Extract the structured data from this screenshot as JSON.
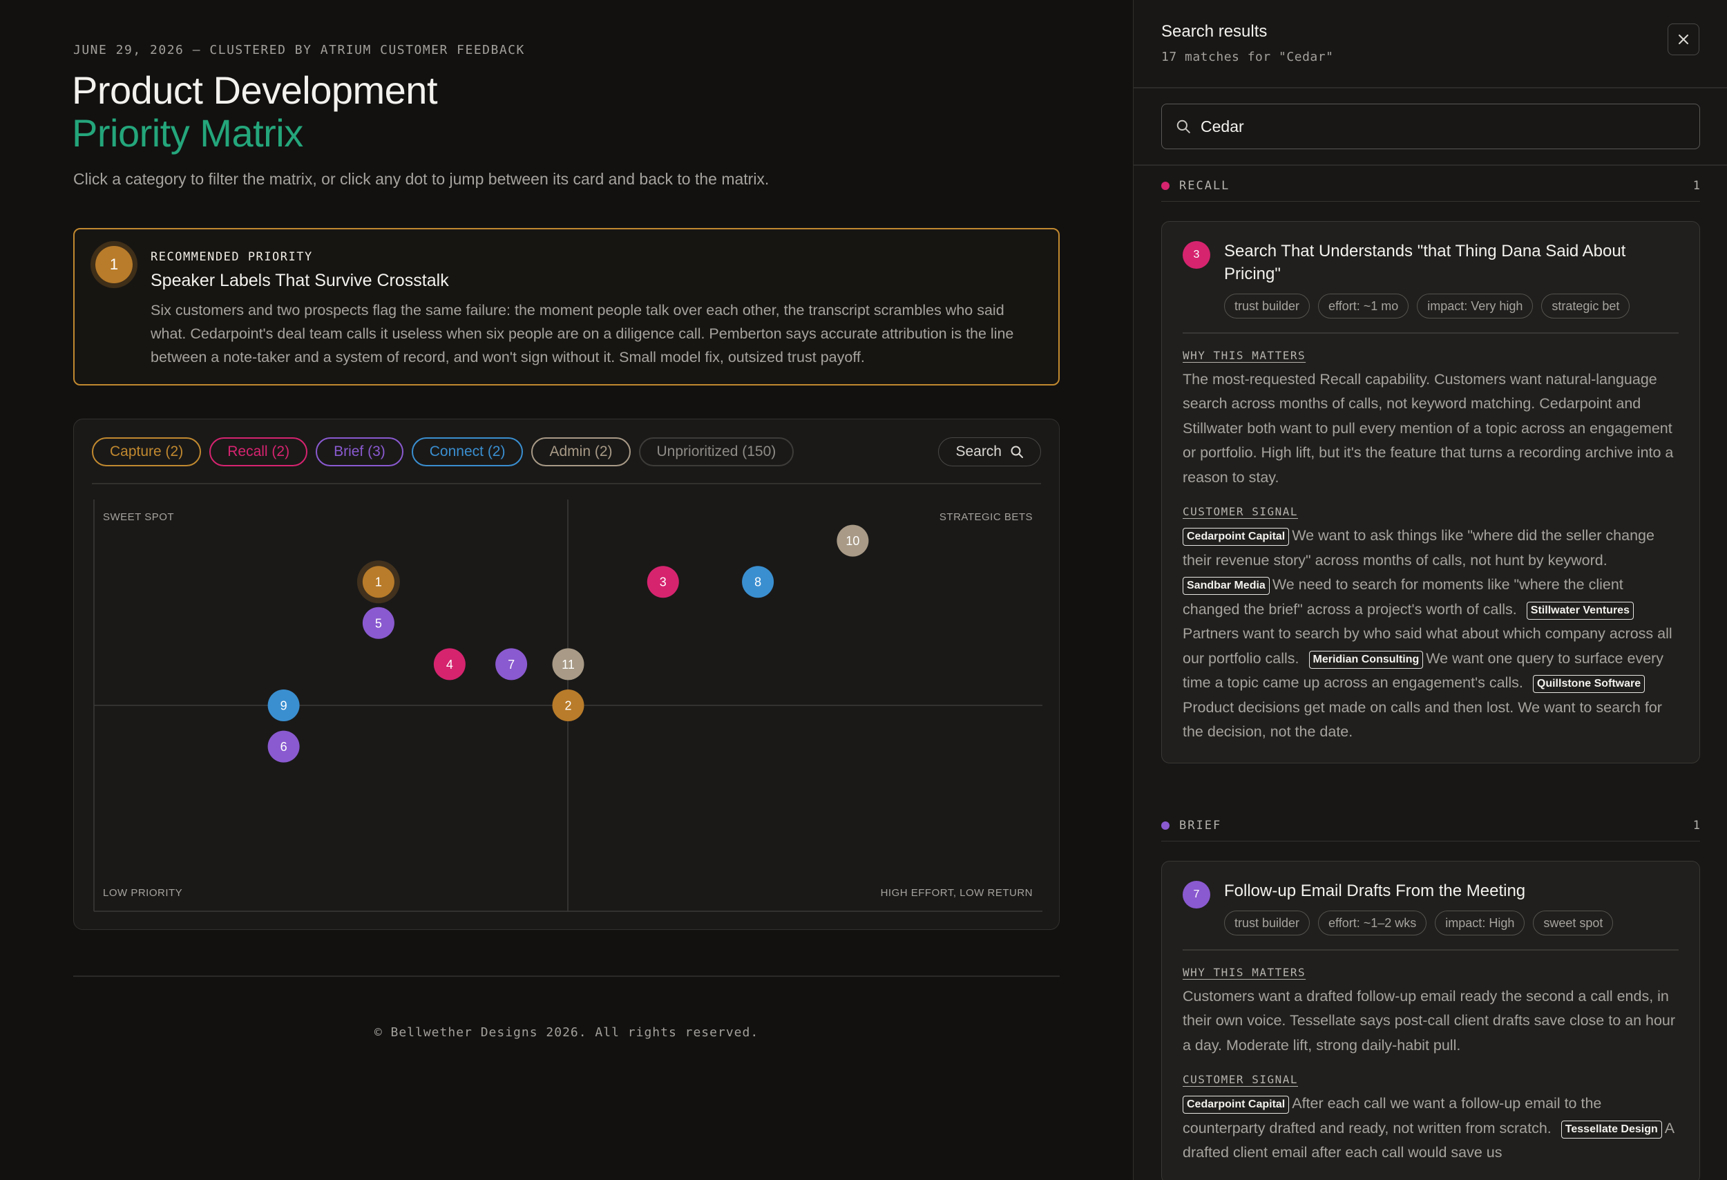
{
  "header": {
    "dateline": "JUNE 29, 2026 — CLUSTERED BY ATRIUM CUSTOMER FEEDBACK",
    "title_line1": "Product Development",
    "title_line2": "Priority Matrix",
    "subtitle": "Click a category to filter the matrix, or click any dot to jump between its card and back to the matrix."
  },
  "recommendation": {
    "badge": "1",
    "label": "RECOMMENDED PRIORITY",
    "title": "Speaker Labels That Survive Crosstalk",
    "body": "Six customers and two prospects flag the same failure: the moment people talk over each other, the transcript scrambles who said what. Cedarpoint's deal team calls it useless when six people are on a diligence call. Pemberton says accurate attribution is the line between a note-taker and a system of record, and won't sign without it. Small model fix, outsized trust payoff."
  },
  "filters": [
    {
      "label": "Capture (2)",
      "color": "#c1892f"
    },
    {
      "label": "Recall (2)",
      "color": "#d6246f"
    },
    {
      "label": "Brief (3)",
      "color": "#8a5ad0"
    },
    {
      "label": "Connect (2)",
      "color": "#3a8fd0"
    },
    {
      "label": "Admin (2)",
      "color": "#a89a86"
    },
    {
      "label": "Unprioritized (150)",
      "color": "#4a4845",
      "muted": true
    }
  ],
  "search_button": {
    "label": "Search",
    "icon": "search-icon"
  },
  "matrix": {
    "quadrants": {
      "top_left": "SWEET SPOT",
      "top_right": "STRATEGIC BETS",
      "bottom_left": "LOW PRIORITY",
      "bottom_right": "HIGH EFFORT, LOW RETURN"
    }
  },
  "chart_data": {
    "type": "scatter",
    "x_axis": "effort (low to high)",
    "y_axis": "impact (low to high)",
    "xlim": [
      0,
      20
    ],
    "ylim": [
      0,
      20
    ],
    "grid": false,
    "points": [
      {
        "label": "1",
        "x": 6,
        "y": 16,
        "category": "Capture",
        "color": "#b97c2a",
        "highlight": true
      },
      {
        "label": "2",
        "x": 10,
        "y": 10,
        "category": "Capture",
        "color": "#b97c2a"
      },
      {
        "label": "3",
        "x": 12,
        "y": 16,
        "category": "Recall",
        "color": "#d6246f"
      },
      {
        "label": "4",
        "x": 7.5,
        "y": 12,
        "category": "Recall",
        "color": "#d6246f"
      },
      {
        "label": "5",
        "x": 6,
        "y": 14,
        "category": "Brief",
        "color": "#8a5ad0"
      },
      {
        "label": "6",
        "x": 4,
        "y": 8,
        "category": "Brief",
        "color": "#8a5ad0"
      },
      {
        "label": "7",
        "x": 8.8,
        "y": 12,
        "category": "Brief",
        "color": "#8a5ad0"
      },
      {
        "label": "8",
        "x": 14,
        "y": 16,
        "category": "Connect",
        "color": "#3a8fd0"
      },
      {
        "label": "9",
        "x": 4,
        "y": 10,
        "category": "Connect",
        "color": "#3a8fd0"
      },
      {
        "label": "10",
        "x": 16,
        "y": 18,
        "category": "Admin",
        "color": "#a89a86"
      },
      {
        "label": "11",
        "x": 10,
        "y": 12,
        "category": "Admin",
        "color": "#a89a86"
      }
    ]
  },
  "footer": "© Bellwether Designs 2026. All rights reserved.",
  "panel": {
    "title": "Search results",
    "subtitle": "17 matches for \"Cedar\"",
    "close_icon": "close-icon",
    "search_value": "Cedar",
    "groups": [
      {
        "name": "RECALL",
        "count": "1",
        "color": "#d6246f",
        "card": {
          "badge": "3",
          "title": "Search That Understands \"that Thing Dana Said About Pricing\"",
          "tags": [
            "trust builder",
            "effort: ~1 mo",
            "impact: Very high",
            "strategic bet"
          ],
          "why_label": "WHY THIS MATTERS",
          "why": "The most-requested Recall capability. Customers want natural-language search across months of calls, not keyword matching. Cedarpoint and Stillwater both want to pull every mention of a topic across an engagement or portfolio. High lift, but it's the feature that turns a recording archive into a reason to stay.",
          "signal_label": "CUSTOMER SIGNAL",
          "signals": [
            {
              "company": "Cedarpoint Capital",
              "quote": "We want to ask things like \"where did the seller change their revenue story\" across months of calls, not hunt by keyword."
            },
            {
              "company": "Sandbar Media",
              "quote": "We need to search for moments like \"where the client changed the brief\" across a project's worth of calls."
            },
            {
              "company": "Stillwater Ventures",
              "quote": "Partners want to search by who said what about which company across all our portfolio calls."
            },
            {
              "company": "Meridian Consulting",
              "quote": "We want one query to surface every time a topic came up across an engagement's calls."
            },
            {
              "company": "Quillstone Software",
              "quote": "Product decisions get made on calls and then lost. We want to search for the decision, not the date."
            }
          ]
        }
      },
      {
        "name": "BRIEF",
        "count": "1",
        "color": "#8a5ad0",
        "card": {
          "badge": "7",
          "title": "Follow-up Email Drafts From the Meeting",
          "tags": [
            "trust builder",
            "effort: ~1–2 wks",
            "impact: High",
            "sweet spot"
          ],
          "why_label": "WHY THIS MATTERS",
          "why": "Customers want a drafted follow-up email ready the second a call ends, in their own voice. Tessellate says post-call client drafts save close to an hour a day. Moderate lift, strong daily-habit pull.",
          "signal_label": "CUSTOMER SIGNAL",
          "signals": [
            {
              "company": "Cedarpoint Capital",
              "quote": "After each call we want a follow-up email to the counterparty drafted and ready, not written from scratch."
            },
            {
              "company": "Tessellate Design",
              "quote": "A drafted client email after each call would save us"
            }
          ]
        }
      }
    ]
  }
}
